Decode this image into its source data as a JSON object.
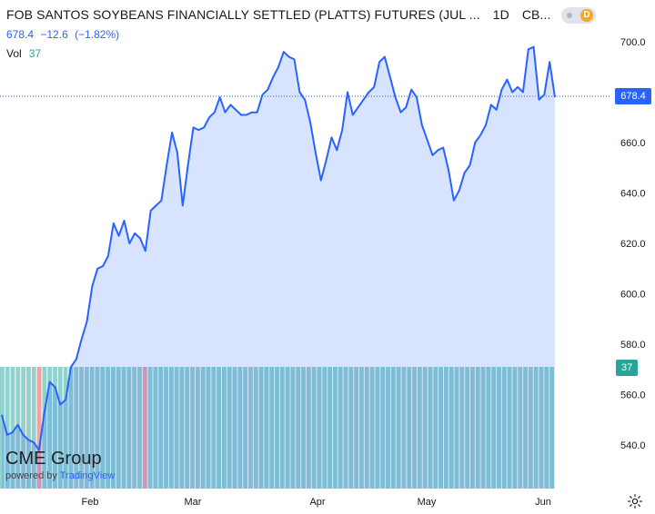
{
  "header": {
    "title": "FOB SANTOS SOYBEANS FINANCIALLY SETTLED (PLATTS) FUTURES (JUL ...",
    "interval": "1D",
    "exchange": "CB...",
    "toggle_icon": "D"
  },
  "quote": {
    "last": "678.4",
    "change": "−12.6",
    "change_pct": "(−1.82%)"
  },
  "volume": {
    "label": "Vol",
    "value": "37"
  },
  "logo": {
    "brand": "CME Group",
    "powered_prefix": "powered by",
    "powered_brand": "TradingView"
  },
  "colors": {
    "line": "#2962ff",
    "volume": "#26a69a",
    "volume_down": "#ef5350"
  },
  "chart_data": {
    "type": "area",
    "title": "FOB SANTOS SOYBEANS FINANCIALLY SETTLED (PLATTS) FUTURES (JUL ...",
    "xlabel": "",
    "ylabel": "",
    "ylim": [
      530,
      704
    ],
    "y_ticks": [
      "540.0",
      "560.0",
      "580.0",
      "600.0",
      "620.0",
      "640.0",
      "660.0",
      "680.0",
      "700.0"
    ],
    "x_ticks": [
      "Feb",
      "Mar",
      "Apr",
      "May",
      "Jun"
    ],
    "last_label": "678.4",
    "volume_label": "37",
    "grid": false,
    "series": [
      {
        "values": [
          552,
          544,
          545,
          548,
          544,
          542,
          541,
          538,
          553,
          565,
          563,
          556,
          558,
          571,
          574,
          582,
          589,
          603,
          610,
          611,
          615,
          628,
          623,
          629,
          620,
          624,
          622,
          617,
          633,
          635,
          637,
          651,
          664,
          656,
          635,
          651,
          666,
          665,
          666,
          670,
          672,
          678,
          672,
          675,
          673,
          671,
          671,
          672,
          672,
          679,
          681,
          686,
          690,
          696,
          694,
          693,
          680,
          677,
          668,
          656,
          645,
          653,
          662,
          657,
          665,
          680,
          671,
          674,
          677,
          680,
          682,
          692,
          694,
          686,
          678,
          672,
          674,
          681,
          678,
          667,
          661,
          655,
          657,
          658,
          649,
          637,
          641,
          648,
          651,
          660,
          663,
          667,
          675,
          673,
          681,
          685,
          680,
          682,
          680,
          697,
          698,
          677,
          679,
          692,
          678
        ]
      }
    ],
    "volume_bars": 105,
    "volume_down_bars": [
      7,
      27
    ]
  }
}
